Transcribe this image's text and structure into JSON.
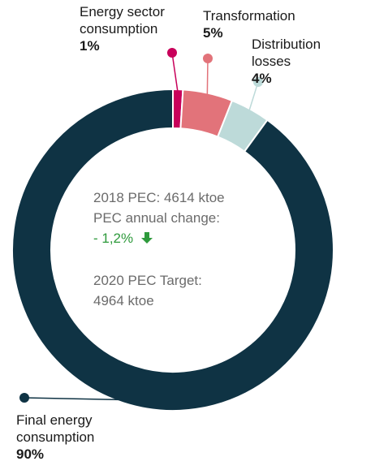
{
  "chart_data": {
    "type": "pie",
    "categories": [
      "Energy sector consumption",
      "Transformation",
      "Distribution losses",
      "Final energy consumption"
    ],
    "values": [
      1,
      5,
      4,
      90
    ],
    "value_labels": [
      "1%",
      "5%",
      "4%",
      "90%"
    ],
    "colors": [
      "#c8005a",
      "#e2737a",
      "#bddad9",
      "#0f3344"
    ],
    "annotations": [
      "2018 PEC: 4614 ktoe",
      "PEC annual change:",
      "- 1,2%",
      "2020 PEC Target: 4964 ktoe"
    ]
  }
}
